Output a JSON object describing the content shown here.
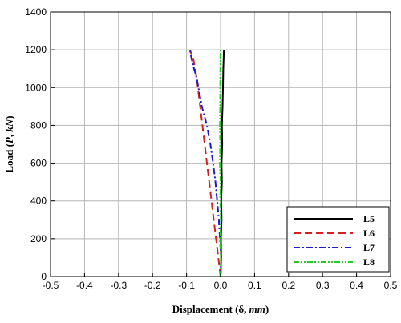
{
  "chart_data": {
    "type": "line",
    "xlabel": "Displacement (δ, mm)",
    "xlabel_parts": [
      "Displacement (",
      "δ",
      ", ",
      "mm",
      ")"
    ],
    "ylabel": "Load (P, kN)",
    "ylabel_parts": [
      "Load (",
      "P",
      ", ",
      "kN",
      ")"
    ],
    "xlim": [
      -0.5,
      0.5
    ],
    "ylim": [
      0,
      1400
    ],
    "xticks": [
      -0.5,
      -0.4,
      -0.3,
      -0.2,
      -0.1,
      0,
      0.1,
      0.2,
      0.3,
      0.4,
      0.5
    ],
    "xtick_labels": [
      "-0.5",
      "-0.4",
      "-0.3",
      "-0.2",
      "-0.1",
      "0.0",
      "0.1",
      "0.2",
      "0.3",
      "0.4",
      "0.5"
    ],
    "yticks": [
      0,
      200,
      400,
      600,
      800,
      1000,
      1200,
      1400
    ],
    "ytick_labels": [
      "0",
      "200",
      "400",
      "600",
      "800",
      "1000",
      "1200",
      "1400"
    ],
    "grid": true,
    "legend_position": "bottom-right",
    "series": [
      {
        "name": "L5",
        "color": "#000000",
        "dash": "solid",
        "x": [
          0.0,
          0.002,
          0.001,
          0.003,
          0.002,
          0.004,
          0.003,
          0.005,
          0.004,
          0.006,
          0.007,
          0.008,
          0.009,
          0.01
        ],
        "y": [
          0,
          100,
          200,
          300,
          400,
          500,
          600,
          700,
          800,
          900,
          1000,
          1100,
          1150,
          1200
        ]
      },
      {
        "name": "L6",
        "color": "#d42020",
        "dash": "long-dash",
        "x": [
          0.0,
          -0.01,
          -0.02,
          -0.03,
          -0.04,
          -0.05,
          -0.06,
          -0.07,
          -0.08,
          -0.09
        ],
        "y": [
          0,
          150,
          300,
          450,
          600,
          750,
          900,
          1050,
          1150,
          1200
        ]
      },
      {
        "name": "L7",
        "color": "#1a1acc",
        "dash": "dash-dot",
        "x": [
          0.0,
          0.002,
          -0.002,
          -0.005,
          -0.01,
          -0.015,
          -0.022,
          -0.03,
          -0.04,
          -0.055,
          -0.065,
          -0.07,
          -0.078,
          -0.085,
          -0.09
        ],
        "y": [
          0,
          100,
          200,
          300,
          400,
          500,
          600,
          700,
          800,
          900,
          1000,
          1050,
          1100,
          1150,
          1200
        ]
      },
      {
        "name": "L8",
        "color": "#22cc22",
        "dash": "dash-dot-dot",
        "x": [
          0.0,
          0.001,
          -0.001,
          0.001,
          -0.001,
          0.0,
          -0.002,
          -0.001,
          -0.002,
          -0.001,
          -0.001,
          0.0
        ],
        "y": [
          0,
          100,
          200,
          300,
          400,
          500,
          600,
          700,
          800,
          900,
          1000,
          1200
        ]
      }
    ]
  }
}
